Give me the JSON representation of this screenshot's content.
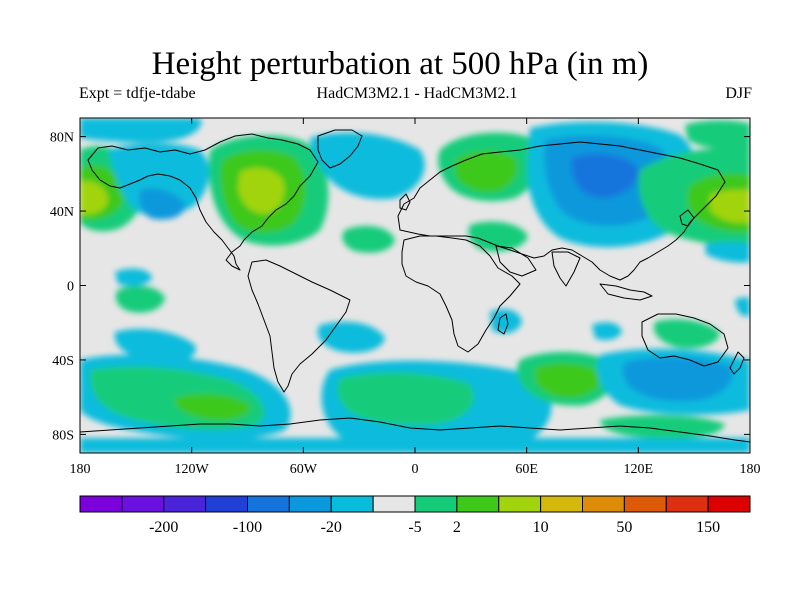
{
  "title": "Height perturbation at 500 hPa (in m)",
  "subtitle_left": "Expt = tdfje-tdabe",
  "subtitle_center": "HadCM3M2.1 - HadCM3M2.1",
  "subtitle_right": "DJF",
  "lat_ticks": [
    {
      "value": 80,
      "label": "80N"
    },
    {
      "value": 40,
      "label": "40N"
    },
    {
      "value": 0,
      "label": "0"
    },
    {
      "value": -40,
      "label": "40S"
    },
    {
      "value": -80,
      "label": "80S"
    }
  ],
  "lon_ticks": [
    {
      "value": -180,
      "label": "180"
    },
    {
      "value": -120,
      "label": "120W"
    },
    {
      "value": -60,
      "label": "60W"
    },
    {
      "value": 0,
      "label": "0"
    },
    {
      "value": 60,
      "label": "60E"
    },
    {
      "value": 120,
      "label": "120E"
    },
    {
      "value": 180,
      "label": "180"
    }
  ],
  "lon_range": [
    -180,
    180
  ],
  "lat_range": [
    -90,
    90
  ],
  "colorbar": {
    "colors": [
      "#7a00dc",
      "#6a10e0",
      "#4a24d8",
      "#2040d8",
      "#1474dc",
      "#0b98dc",
      "#08bcdc",
      "#e6e6e6",
      "#14cc7a",
      "#3ec81a",
      "#a2d40e",
      "#d4b80c",
      "#dc8c08",
      "#dc5a08",
      "#dc3010",
      "#dc0000"
    ],
    "labels": [
      {
        "boundary": 2,
        "text": "-200"
      },
      {
        "boundary": 4,
        "text": "-100"
      },
      {
        "boundary": 6,
        "text": "-20"
      },
      {
        "boundary": 8,
        "text": "-5"
      },
      {
        "boundary": 9,
        "text": "2"
      },
      {
        "boundary": 11,
        "text": "10"
      },
      {
        "boundary": 13,
        "text": "50"
      },
      {
        "boundary": 15,
        "text": "150"
      }
    ]
  },
  "colors": {
    "background_field": "#e6e6e6",
    "coast": "#000000"
  }
}
